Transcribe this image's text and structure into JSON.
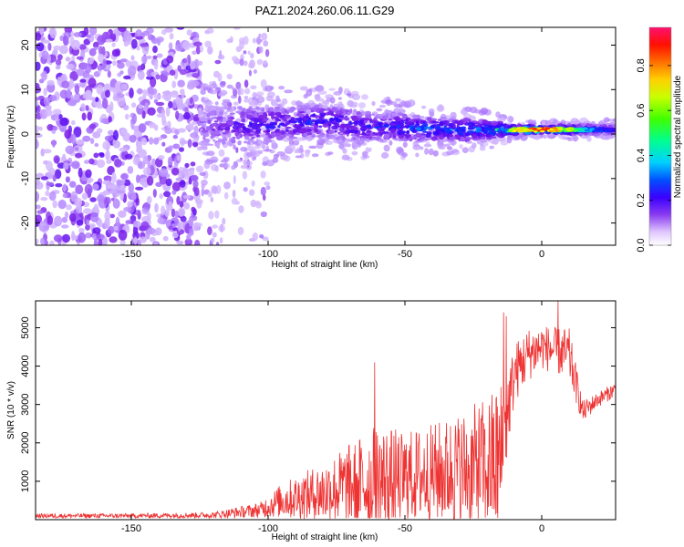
{
  "title": "PAZ1.2024.260.06.11.G29",
  "chart_data": [
    {
      "type": "heatmap",
      "xlabel": "Height of straight line (km)",
      "ylabel": "Frequency (Hz)",
      "xlim": [
        -185,
        27
      ],
      "ylim": [
        -25,
        24
      ],
      "xticks": [
        -150,
        -100,
        -50,
        0
      ],
      "yticks": [
        -20,
        -10,
        0,
        10,
        20
      ],
      "colorbar": {
        "label": "Normalized spectral amplitude",
        "range": [
          0.0,
          0.97
        ],
        "ticks": [
          0.0,
          0.2,
          0.4,
          0.6,
          0.8
        ],
        "colormap": [
          "#e8d8ff",
          "#b080ff",
          "#7b1fe8",
          "#3a00ff",
          "#0040ff",
          "#00c8ff",
          "#00ff80",
          "#80ff00",
          "#ffff00",
          "#ff8000",
          "#ff0000",
          "#ff1060"
        ]
      },
      "ridge": {
        "x": [
          -125,
          -110,
          -100,
          -90,
          -80,
          -70,
          -60,
          -50,
          -40,
          -30,
          -20,
          -15,
          -10,
          0,
          10,
          20,
          27
        ],
        "y": [
          1.5,
          2,
          2,
          2.5,
          3,
          2,
          1.5,
          1.5,
          1,
          1,
          1,
          1,
          1,
          1,
          1,
          1,
          1
        ],
        "amplitude": [
          0.15,
          0.3,
          0.35,
          0.35,
          0.35,
          0.35,
          0.35,
          0.4,
          0.45,
          0.45,
          0.5,
          0.6,
          0.75,
          0.95,
          0.7,
          0.4,
          0.3
        ],
        "spread": [
          5,
          4,
          4,
          3.5,
          3.5,
          3.5,
          3,
          3,
          2.5,
          2.5,
          2,
          1.5,
          1,
          0.7,
          1,
          1,
          1
        ]
      },
      "noise_region": {
        "x": [
          -185,
          -125
        ],
        "y": [
          -25,
          24
        ],
        "amplitude": 0.2
      }
    },
    {
      "type": "line",
      "xlabel": "Height of straight line (km)",
      "ylabel": "SNR (10 * v/v)",
      "xlim": [
        -185,
        27
      ],
      "ylim": [
        0,
        5700
      ],
      "xticks": [
        -150,
        -100,
        -50,
        0
      ],
      "yticks": [
        1000,
        2000,
        3000,
        4000,
        5000
      ],
      "color": "#ee3333",
      "envelope": {
        "x": [
          -185,
          -150,
          -120,
          -110,
          -103,
          -100,
          -95,
          -80,
          -70,
          -60,
          -50,
          -40,
          -30,
          -20,
          -15,
          -12,
          -10,
          -5,
          0,
          5,
          10,
          15,
          20,
          27
        ],
        "mid": [
          100,
          100,
          120,
          200,
          250,
          350,
          500,
          700,
          900,
          1000,
          1100,
          1200,
          1300,
          1400,
          1500,
          3000,
          3800,
          4300,
          4500,
          4400,
          4300,
          2800,
          3100,
          3400
        ],
        "amp": [
          60,
          60,
          80,
          150,
          200,
          300,
          450,
          800,
          1100,
          1500,
          1200,
          1300,
          1500,
          1800,
          2200,
          1000,
          800,
          700,
          600,
          600,
          700,
          300,
          200,
          200
        ]
      },
      "peaks": [
        {
          "x": -61,
          "y": 4100
        },
        {
          "x": -14,
          "y": 5400
        },
        {
          "x": -13,
          "y": 5300
        },
        {
          "x": 6,
          "y": 5700
        }
      ]
    }
  ]
}
